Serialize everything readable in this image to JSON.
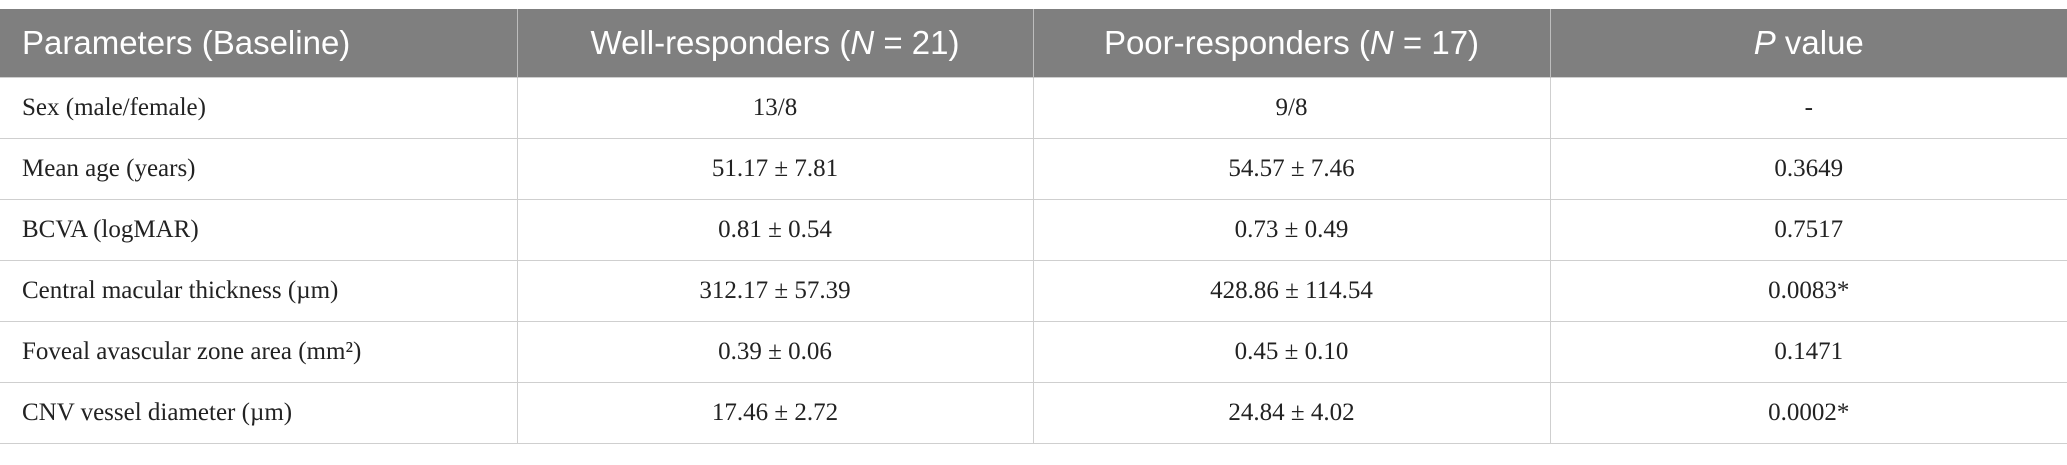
{
  "table": {
    "header": [
      [
        {
          "text": "Parameters (Baseline)",
          "italic": false
        }
      ],
      [
        {
          "text": "Well-responders (",
          "italic": false
        },
        {
          "text": "N",
          "italic": true
        },
        {
          "text": " = 21)",
          "italic": false
        }
      ],
      [
        {
          "text": "Poor-responders (",
          "italic": false
        },
        {
          "text": "N",
          "italic": true
        },
        {
          "text": " = 17)",
          "italic": false
        }
      ],
      [
        {
          "text": "P",
          "italic": true
        },
        {
          "text": " value",
          "italic": false
        }
      ]
    ],
    "rows": [
      [
        "Sex (male/female)",
        "13/8",
        "9/8",
        "-"
      ],
      [
        "Mean age (years)",
        "51.17 ± 7.81",
        "54.57 ± 7.46",
        "0.3649"
      ],
      [
        "BCVA (logMAR)",
        "0.81 ± 0.54",
        "0.73 ± 0.49",
        "0.7517"
      ],
      [
        "Central macular thickness (µm)",
        "312.17 ± 57.39",
        "428.86 ± 114.54",
        "0.0083*"
      ],
      [
        "Foveal avascular zone area (mm²)",
        "0.39 ± 0.06",
        "0.45 ± 0.10",
        "0.1471"
      ],
      [
        "CNV vessel diameter (µm)",
        "17.46 ± 2.72",
        "24.84 ± 4.02",
        "0.0002*"
      ]
    ]
  }
}
